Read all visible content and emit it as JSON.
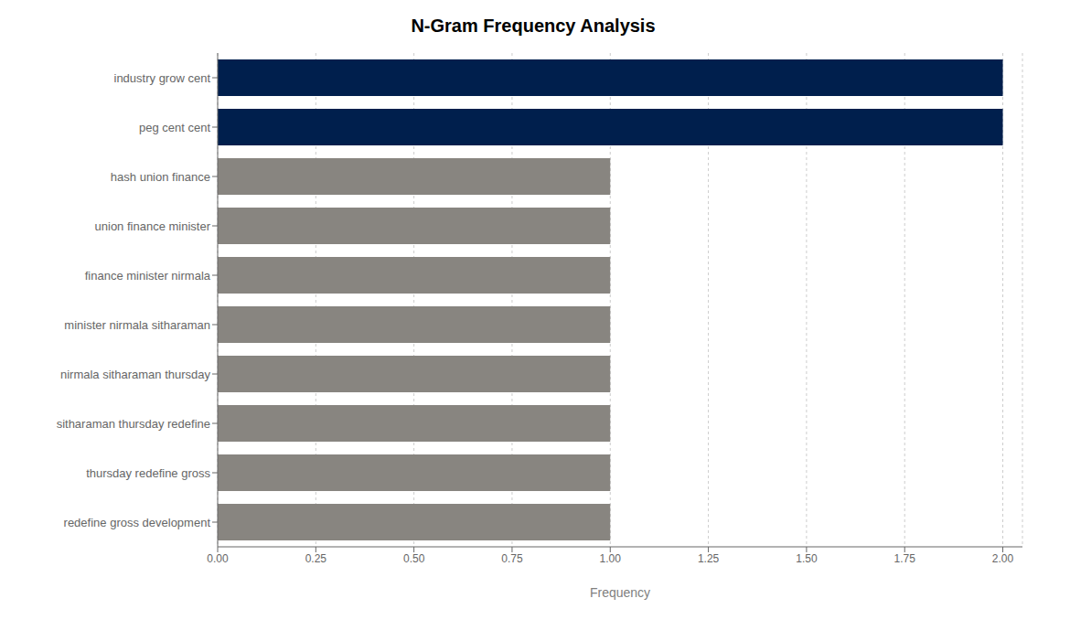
{
  "chart_data": {
    "type": "bar",
    "orientation": "horizontal",
    "title": "N-Gram Frequency Analysis",
    "xlabel": "Frequency",
    "categories": [
      "redefine gross development",
      "thursday redefine gross",
      "sitharaman thursday redefine",
      "nirmala sitharaman thursday",
      "minister nirmala sitharaman",
      "finance minister nirmala",
      "union finance minister",
      "hash union finance",
      "peg cent cent",
      "industry grow cent"
    ],
    "values": [
      1,
      1,
      1,
      1,
      1,
      1,
      1,
      1,
      2,
      2
    ],
    "colors": [
      "#888580",
      "#888580",
      "#888580",
      "#888580",
      "#888580",
      "#888580",
      "#888580",
      "#888580",
      "#001f4d",
      "#001f4d"
    ],
    "xlim": [
      0,
      2.05
    ],
    "xticks": [
      {
        "value": 0.0,
        "label": "0.00"
      },
      {
        "value": 0.25,
        "label": "0.25"
      },
      {
        "value": 0.5,
        "label": "0.50"
      },
      {
        "value": 0.75,
        "label": "0.75"
      },
      {
        "value": 1.0,
        "label": "1.00"
      },
      {
        "value": 1.25,
        "label": "1.25"
      },
      {
        "value": 1.5,
        "label": "1.50"
      },
      {
        "value": 1.75,
        "label": "1.75"
      },
      {
        "value": 2.0,
        "label": "2.00"
      }
    ],
    "grid": true
  }
}
